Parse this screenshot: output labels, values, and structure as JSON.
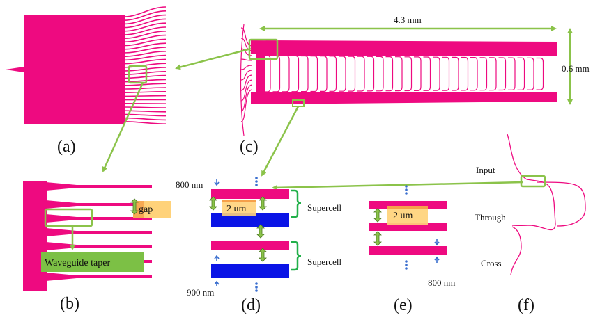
{
  "colors": {
    "pink": "#ee0a80",
    "blue": "#0a14e6",
    "green": "#8bc34a",
    "bracket_green": "#22b04a",
    "highlight_yellow": "#ffd27a",
    "highlight_orange": "#f5a04a",
    "taper_box": "#7cc045",
    "arrow_blue": "#3b6fcf"
  },
  "panels": {
    "a": "(a)",
    "b": "(b)",
    "c": "(c)",
    "d": "(d)",
    "e": "(e)",
    "f": "(f)"
  },
  "panel_c": {
    "length_label": "4.3 mm",
    "height_label": "0.6 mm"
  },
  "panel_b": {
    "gap_label": "gap",
    "taper_label": "Waveguide taper"
  },
  "panel_d": {
    "top_label": "800 nm",
    "bottom_label": "900 nm",
    "width_label": "2 um",
    "supercell_1": "Supercell",
    "supercell_2": "Supercell"
  },
  "panel_e": {
    "width_label": "2 um",
    "thickness_label": "800 nm"
  },
  "panel_f": {
    "input": "Input",
    "through": "Through",
    "cross": "Cross"
  }
}
